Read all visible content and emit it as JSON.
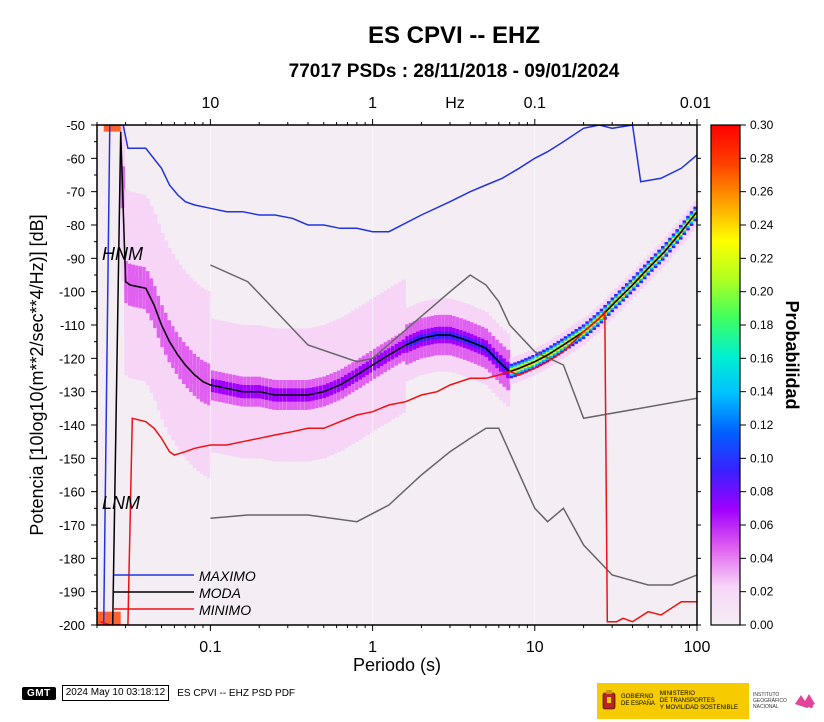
{
  "chart_data": {
    "type": "heatmap",
    "title": "ES CPVI -- EHZ",
    "subtitle": "77017 PSDs : 28/11/2018 - 09/01/2024",
    "xlabel": "Periodo (s)",
    "ylabel": "Potencia [10log10(m**2/sec**4/Hz)] [dB]",
    "x_scale": "log",
    "xlim": [
      0.02,
      100
    ],
    "ylim": [
      -200,
      -50
    ],
    "x_ticks": [
      {
        "v": 0.1,
        "label": "0.1"
      },
      {
        "v": 1,
        "label": "1"
      },
      {
        "v": 10,
        "label": "10"
      },
      {
        "v": 100,
        "label": "100"
      }
    ],
    "y_ticks": [
      -50,
      -60,
      -70,
      -80,
      -90,
      -100,
      -110,
      -120,
      -130,
      -140,
      -150,
      -160,
      -170,
      -180,
      -190,
      -200
    ],
    "top_axis": {
      "unit_label": "Hz",
      "ticks": [
        {
          "v": 0.1,
          "label": "10"
        },
        {
          "v": 1,
          "label": "1"
        },
        {
          "v": 10,
          "label": "0.1"
        },
        {
          "v": 100,
          "label": "0.01"
        }
      ]
    },
    "colorbar": {
      "label": "Probabilidad",
      "range": [
        0,
        0.3
      ],
      "ticks": [
        "0.00",
        "0.02",
        "0.04",
        "0.06",
        "0.08",
        "0.10",
        "0.12",
        "0.14",
        "0.16",
        "0.18",
        "0.20",
        "0.22",
        "0.24",
        "0.26",
        "0.28",
        "0.30"
      ],
      "stops": [
        "#f4eef4",
        "#f7d5f7",
        "#e060f0",
        "#a000ff",
        "#3a20ff",
        "#0060ff",
        "#00c0ff",
        "#00f0d0",
        "#40ff60",
        "#b0ff20",
        "#ffff00",
        "#ffa000",
        "#ff4000",
        "#ff0000"
      ]
    },
    "series": [
      {
        "name": "MAXIMO",
        "color": "#2233dd",
        "x": [
          0.022,
          0.024,
          0.027,
          0.029,
          0.031,
          0.04,
          0.05,
          0.056,
          0.063,
          0.07,
          0.08,
          0.1,
          0.126,
          0.158,
          0.2,
          0.25,
          0.32,
          0.4,
          0.5,
          0.63,
          0.8,
          1.0,
          1.26,
          2.0,
          3.0,
          4.0,
          5.0,
          6.3,
          8.0,
          10.0,
          12.0,
          15.0,
          20.0,
          25.0,
          30.0,
          40.0,
          45.0,
          60.0,
          80.0,
          100.0
        ],
        "y": [
          -200,
          -50,
          -50,
          -50,
          -57,
          -57,
          -63,
          -68,
          -71,
          -73,
          -74,
          -75,
          -76,
          -76,
          -77,
          -77,
          -78,
          -80,
          -80,
          -81,
          -81,
          -82,
          -82,
          -77,
          -73,
          -70,
          -68,
          -66,
          -63,
          -60,
          -58,
          -55,
          -51,
          -50,
          -51,
          -50,
          -67,
          -66,
          -63,
          -59
        ]
      },
      {
        "name": "MODA",
        "color": "#000000",
        "x": [
          0.025,
          0.028,
          0.03,
          0.032,
          0.04,
          0.045,
          0.05,
          0.056,
          0.063,
          0.07,
          0.08,
          0.09,
          0.1,
          0.126,
          0.158,
          0.2,
          0.25,
          0.32,
          0.4,
          0.5,
          0.63,
          0.8,
          1.0,
          1.26,
          1.6,
          2.0,
          2.5,
          3.0,
          3.5,
          4.0,
          5.0,
          6.0,
          7.0,
          8.0,
          10.0,
          12.0,
          15.0,
          20.0,
          25.0,
          30.0,
          40.0,
          50.0,
          63.0,
          80.0,
          100.0
        ],
        "y": [
          -200,
          -52,
          -97,
          -98,
          -99,
          -104,
          -110,
          -115,
          -119,
          -122,
          -125,
          -127,
          -128,
          -129,
          -130,
          -130,
          -131,
          -131,
          -131,
          -130,
          -128,
          -125,
          -122,
          -119,
          -116,
          -114,
          -113,
          -113,
          -114,
          -115,
          -117,
          -121,
          -124,
          -123,
          -121,
          -119,
          -116,
          -112,
          -108,
          -104,
          -98,
          -93,
          -88,
          -82,
          -76
        ]
      },
      {
        "name": "MINIMO",
        "color": "#ee1111",
        "x": [
          0.021,
          0.024,
          0.028,
          0.031,
          0.033,
          0.04,
          0.045,
          0.05,
          0.056,
          0.06,
          0.07,
          0.08,
          0.1,
          0.126,
          0.158,
          0.2,
          0.25,
          0.32,
          0.4,
          0.5,
          0.63,
          0.8,
          1.0,
          1.26,
          1.6,
          2.0,
          2.5,
          3.0,
          4.0,
          5.0,
          6.0,
          7.0,
          8.0,
          10.0,
          12.0,
          15.0,
          20.0,
          25.0,
          27.0,
          28.0,
          32.0,
          35.0,
          40.0,
          50.0,
          60.0,
          80.0,
          100.0
        ],
        "y": [
          -199,
          -200,
          -200,
          -200,
          -138,
          -139,
          -141,
          -144,
          -148,
          -149,
          -148,
          -147,
          -146,
          -146,
          -145,
          -144,
          -143,
          -142,
          -141,
          -141,
          -139,
          -137,
          -136,
          -134,
          -133,
          -131,
          -130,
          -128,
          -126,
          -126,
          -125,
          -124,
          -125,
          -123,
          -121,
          -118,
          -112,
          -108,
          -106,
          -199,
          -199,
          -198,
          -199,
          -196,
          -197,
          -193,
          -193
        ]
      }
    ],
    "reference_curves": [
      {
        "name": "HNM",
        "color": "#666666",
        "x": [
          0.1,
          0.17,
          0.4,
          0.8,
          1.0,
          3.0,
          4.0,
          5.0,
          6.0,
          7.0,
          10.0,
          15.0,
          20.0,
          100.0
        ],
        "y": [
          -92,
          -97,
          -116,
          -121,
          -120,
          -100,
          -95,
          -98,
          -103,
          -110,
          -118,
          -122,
          -138,
          -132
        ]
      },
      {
        "name": "LNM",
        "color": "#666666",
        "x": [
          0.1,
          0.17,
          0.4,
          0.8,
          1.26,
          2.0,
          3.0,
          4.0,
          5.0,
          6.0,
          10.0,
          12.0,
          15.0,
          20.0,
          30.0,
          50.0,
          70.0,
          100.0
        ],
        "y": [
          -168,
          -167,
          -167,
          -169,
          -164,
          -155,
          -148,
          -144,
          -141,
          -141,
          -165,
          -169,
          -165,
          -176,
          -185,
          -188,
          -188,
          -185
        ]
      }
    ],
    "labels": {
      "hnm": "HNM",
      "lnm": "LNM"
    },
    "legend": {
      "placement": "bottom-left",
      "entries": [
        "MAXIMO",
        "MODA",
        "MINIMO"
      ]
    }
  },
  "footer": {
    "gmt": "GMT",
    "timestamp": "2024 May 10 03:18:12",
    "caption": "ES CPVI -- EHZ PSD PDF"
  },
  "logos": {
    "gov_line1": "GOBIERNO",
    "gov_line2": "DE ESPAÑA",
    "ministry_line1": "MINISTERIO",
    "ministry_line2": "DE TRANSPORTES",
    "ministry_line3": "Y MOVILIDAD SOSTENIBLE",
    "ign_line1": "INSTITUTO",
    "ign_line2": "GEOGRÁFICO",
    "ign_line3": "NACIONAL"
  }
}
